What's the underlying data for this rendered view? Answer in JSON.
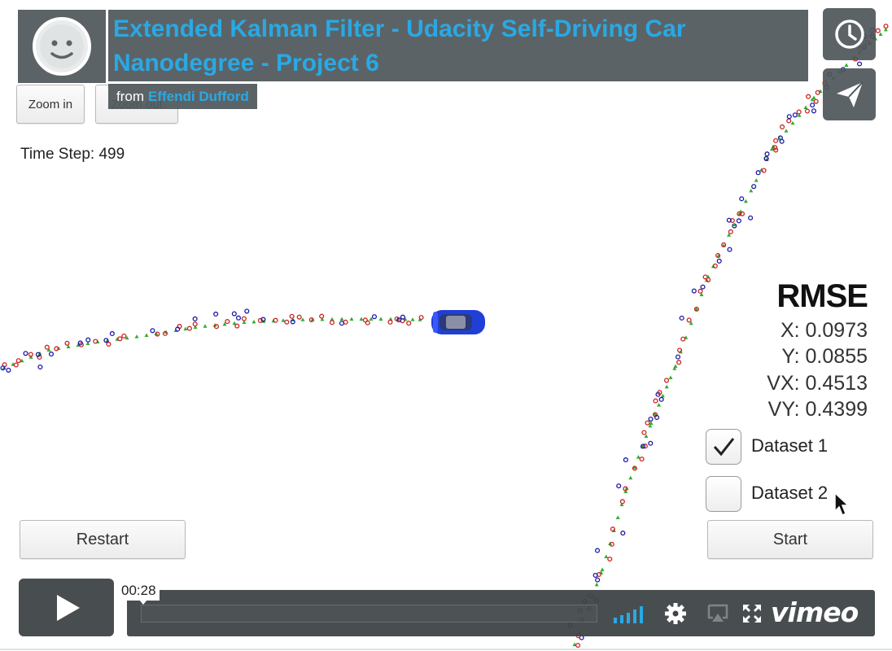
{
  "video": {
    "title_line1": "Extended Kalman Filter - Udacity Self-Driving Car",
    "title_line2": "Nanodegree - Project 6",
    "byline_prefix": "from",
    "author": "Effendi Dufford",
    "avatar_icon": "smiley-face-icon"
  },
  "simulator": {
    "zoom_in_label": "Zoom in",
    "zoom_out_label": "Zoom out",
    "time_step_text": "Time Step: 499",
    "rmse": {
      "title": "RMSE",
      "x": "X: 0.0973",
      "y": "Y: 0.0855",
      "vx": "VX: 0.4513",
      "vy": "VY: 0.4399"
    },
    "datasets": [
      {
        "label": "Dataset 1",
        "checked": true
      },
      {
        "label": "Dataset 2",
        "checked": false
      }
    ],
    "restart_label": "Restart",
    "start_label": "Start",
    "colors": {
      "estimate_marker": "#2fae2f",
      "lidar_marker": "#cc2222",
      "radar_marker": "#1a1aa8",
      "car": "#1f3fd6"
    }
  },
  "player": {
    "current_time": "00:28",
    "brand": "vimeo",
    "accent_color": "#29a9e4",
    "icons": [
      "play-icon",
      "volume-icon",
      "gear-icon",
      "airplay-icon",
      "fullscreen-icon",
      "clock-icon",
      "paper-plane-icon"
    ]
  }
}
